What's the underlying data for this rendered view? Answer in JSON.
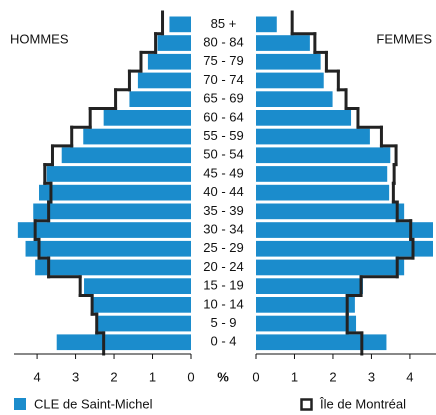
{
  "chart_data": {
    "type": "pyramid",
    "left_title": "HOMMES",
    "right_title": "FEMMES",
    "axis_label": "%",
    "categories": [
      "85 +",
      "80 - 84",
      "75 - 79",
      "70 - 74",
      "65 - 69",
      "60 - 64",
      "55 - 59",
      "50 - 54",
      "45 - 49",
      "40 - 44",
      "35 - 39",
      "30 - 34",
      "25 - 29",
      "20 - 24",
      "15 - 19",
      "10 - 14",
      "5 - 9",
      "0 - 4"
    ],
    "series": [
      {
        "name": "CLE de Saint-Michel",
        "color": "#1b8ccc",
        "style": "bar",
        "hommes": [
          0.56,
          0.87,
          1.12,
          1.38,
          1.6,
          2.27,
          2.8,
          3.36,
          3.75,
          3.95,
          4.1,
          4.5,
          4.3,
          4.05,
          2.78,
          2.55,
          2.45,
          3.49
        ],
        "femmes": [
          0.54,
          1.4,
          1.68,
          1.76,
          1.99,
          2.47,
          2.96,
          3.49,
          3.41,
          3.46,
          3.85,
          4.6,
          4.6,
          3.85,
          2.78,
          2.57,
          2.6,
          3.39
        ]
      },
      {
        "name": "Île de Montréal",
        "color": "#222222",
        "style": "outline",
        "hommes": [
          0.74,
          0.92,
          1.3,
          1.6,
          1.96,
          2.62,
          3.1,
          3.6,
          3.8,
          3.64,
          3.7,
          4.05,
          3.95,
          3.7,
          2.88,
          2.57,
          2.45,
          2.27
        ],
        "femmes": [
          0.94,
          1.53,
          1.83,
          2.14,
          2.34,
          2.65,
          3.26,
          3.64,
          3.59,
          3.57,
          3.67,
          4.02,
          4.08,
          3.67,
          2.73,
          2.37,
          2.37,
          2.75
        ]
      }
    ],
    "xlim": [
      0,
      4.6
    ],
    "xticks": [
      0,
      1,
      2,
      3,
      4
    ]
  }
}
